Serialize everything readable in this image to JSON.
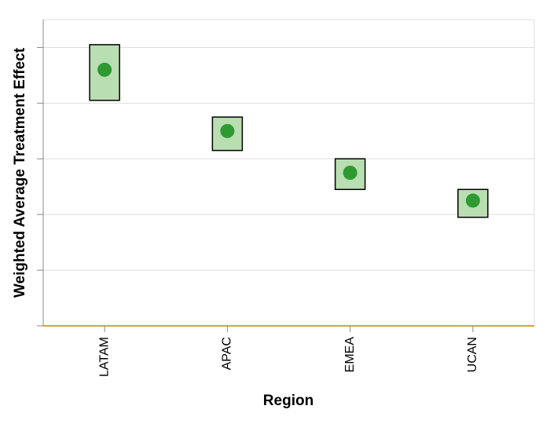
{
  "chart_data": {
    "type": "scatter",
    "title": "",
    "xlabel": "Region",
    "ylabel": "Weighted Average Treatment Effect",
    "categories": [
      "LATAM",
      "APAC",
      "EMEA",
      "UCAN"
    ],
    "ylim": [
      0,
      5.5
    ],
    "yticks": [
      0,
      1,
      2,
      3,
      4,
      5
    ],
    "show_ytick_labels": false,
    "grid": true,
    "series": [
      {
        "estimate": [
          4.6,
          3.5,
          2.75,
          2.25
        ],
        "lower": [
          4.05,
          3.15,
          2.45,
          1.95
        ],
        "upper": [
          5.05,
          3.75,
          3.0,
          2.45
        ]
      }
    ],
    "colors": {
      "point": "#2e9a31",
      "band_fill": "#b9deb2",
      "band_stroke": "#000000",
      "grid": "#dddddd",
      "axis": "#888888",
      "baseline": "#e0a224"
    }
  }
}
